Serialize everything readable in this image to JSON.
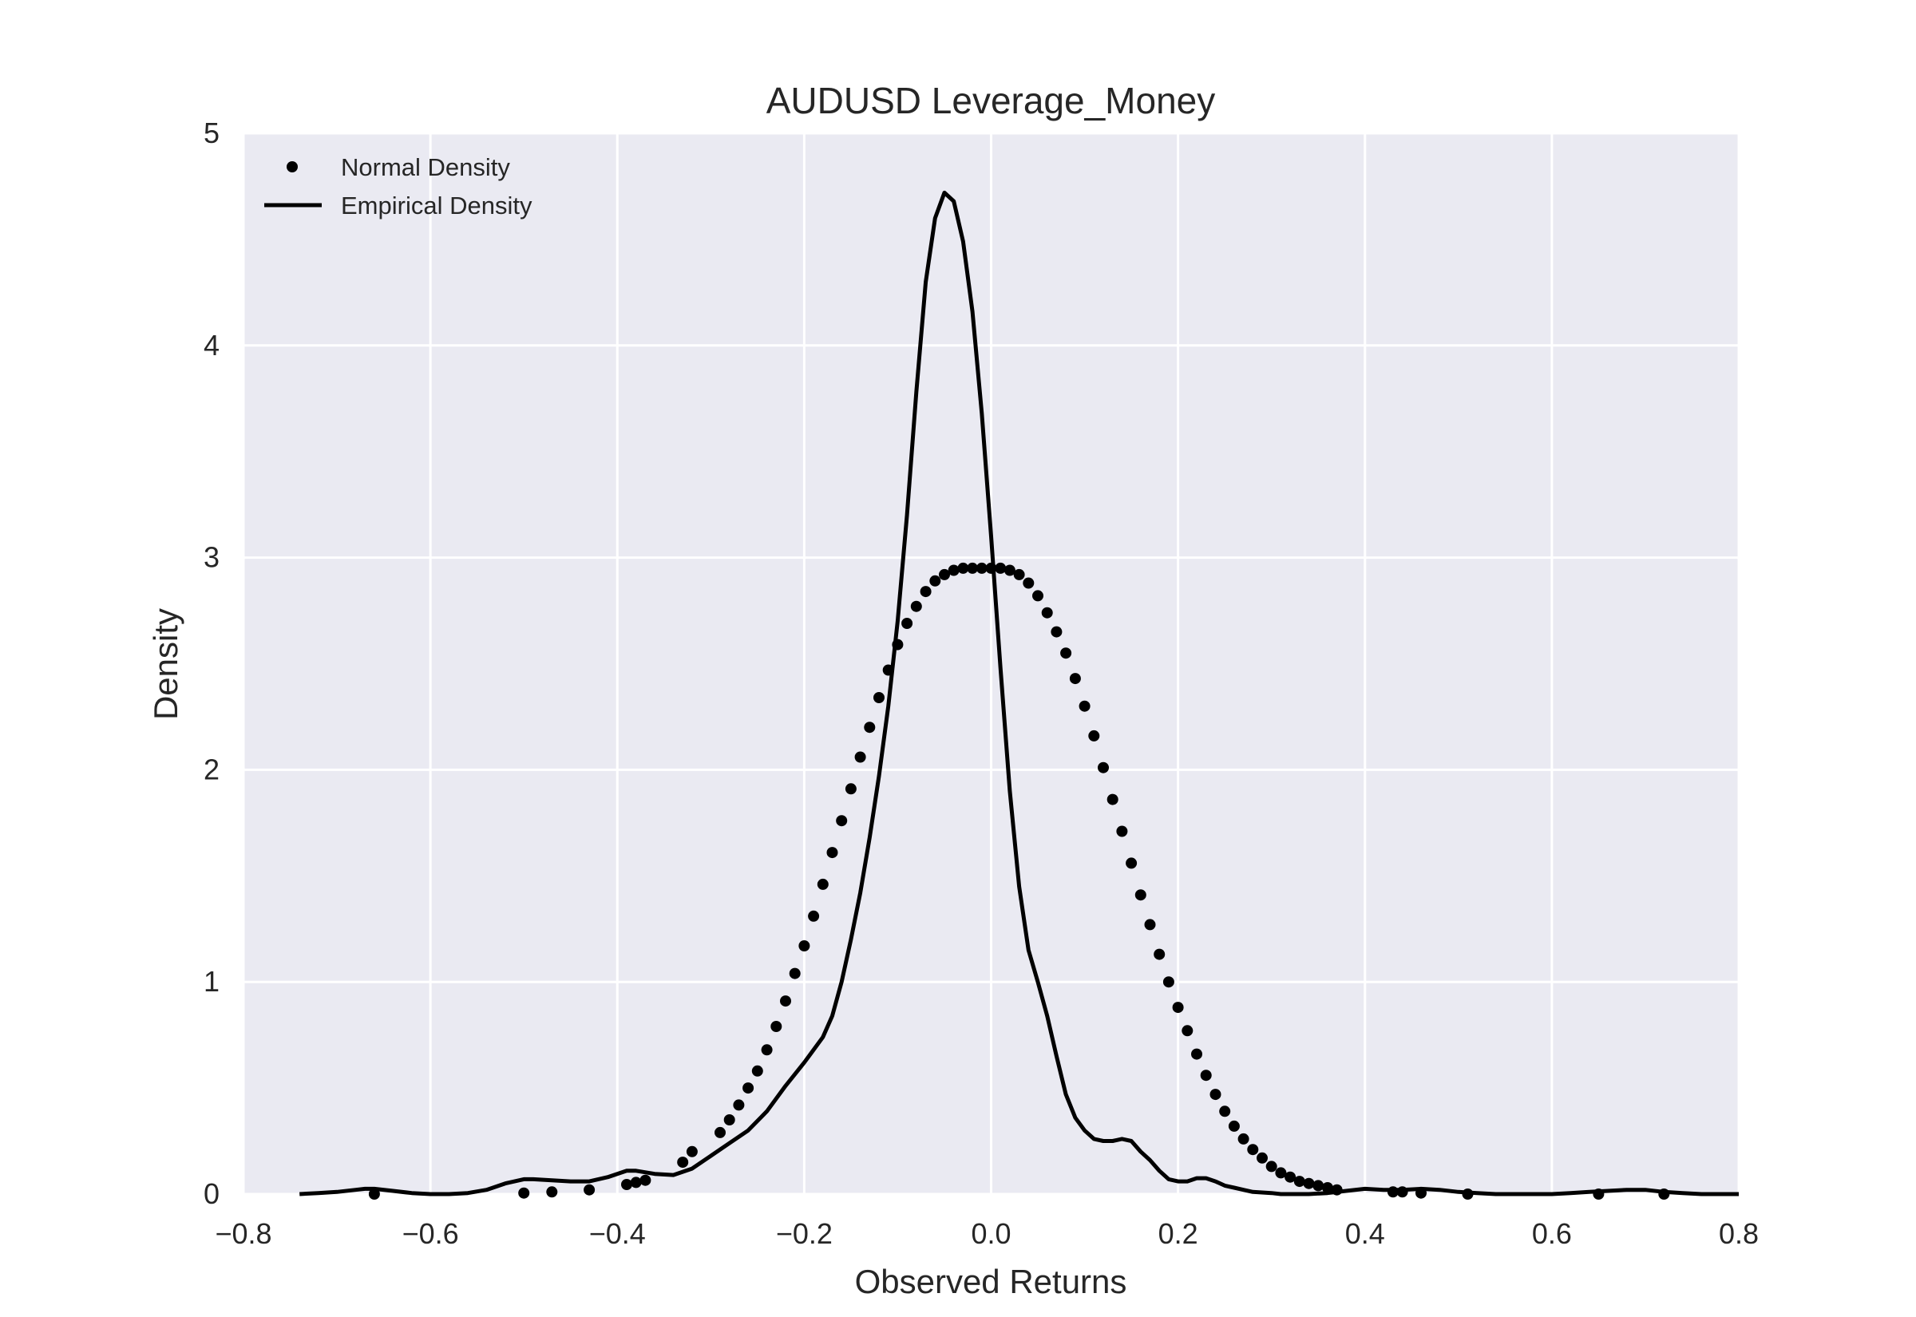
{
  "chart_data": {
    "type": "line",
    "title": "AUDUSD Leverage_Money",
    "xlabel": "Observed Returns",
    "ylabel": "Density",
    "xlim": [
      -0.8,
      0.8
    ],
    "ylim": [
      0,
      5
    ],
    "x_ticks": [
      -0.8,
      -0.6,
      -0.4,
      -0.2,
      0.0,
      0.2,
      0.4,
      0.6,
      0.8
    ],
    "x_tick_labels": [
      "−0.8",
      "−0.6",
      "−0.4",
      "−0.2",
      "0.0",
      "0.2",
      "0.4",
      "0.6",
      "0.8"
    ],
    "y_ticks": [
      0,
      1,
      2,
      3,
      4,
      5
    ],
    "y_tick_labels": [
      "0",
      "1",
      "2",
      "3",
      "4",
      "5"
    ],
    "grid": true,
    "legend_position": "top-left",
    "colors": {
      "background": "#eaeaf2",
      "grid": "#ffffff",
      "series": "#000000",
      "text": "#262626"
    },
    "series": [
      {
        "name": "Normal Density",
        "style": "markers",
        "x": [
          -0.66,
          -0.5,
          -0.47,
          -0.43,
          -0.39,
          -0.38,
          -0.37,
          -0.33,
          -0.32,
          -0.29,
          -0.28,
          -0.27,
          -0.26,
          -0.25,
          -0.24,
          -0.23,
          -0.22,
          -0.21,
          -0.2,
          -0.19,
          -0.18,
          -0.17,
          -0.16,
          -0.15,
          -0.14,
          -0.13,
          -0.12,
          -0.11,
          -0.1,
          -0.09,
          -0.08,
          -0.07,
          -0.06,
          -0.05,
          -0.04,
          -0.03,
          -0.02,
          -0.01,
          0.0,
          0.01,
          0.02,
          0.03,
          0.04,
          0.05,
          0.06,
          0.07,
          0.08,
          0.09,
          0.1,
          0.11,
          0.12,
          0.13,
          0.14,
          0.15,
          0.16,
          0.17,
          0.18,
          0.19,
          0.2,
          0.21,
          0.22,
          0.23,
          0.24,
          0.25,
          0.26,
          0.27,
          0.28,
          0.29,
          0.3,
          0.31,
          0.32,
          0.33,
          0.34,
          0.35,
          0.36,
          0.37,
          0.43,
          0.44,
          0.46,
          0.51,
          0.65,
          0.72
        ],
        "y": [
          0.0,
          0.005,
          0.01,
          0.02,
          0.045,
          0.055,
          0.065,
          0.15,
          0.2,
          0.29,
          0.35,
          0.42,
          0.5,
          0.58,
          0.68,
          0.79,
          0.91,
          1.04,
          1.17,
          1.31,
          1.46,
          1.61,
          1.76,
          1.91,
          2.06,
          2.2,
          2.34,
          2.47,
          2.59,
          2.69,
          2.77,
          2.84,
          2.89,
          2.92,
          2.94,
          2.95,
          2.95,
          2.95,
          2.95,
          2.95,
          2.94,
          2.92,
          2.88,
          2.82,
          2.74,
          2.65,
          2.55,
          2.43,
          2.3,
          2.16,
          2.01,
          1.86,
          1.71,
          1.56,
          1.41,
          1.27,
          1.13,
          1.0,
          0.88,
          0.77,
          0.66,
          0.56,
          0.47,
          0.39,
          0.32,
          0.26,
          0.21,
          0.17,
          0.13,
          0.1,
          0.08,
          0.06,
          0.05,
          0.04,
          0.03,
          0.02,
          0.01,
          0.01,
          0.005,
          0.0,
          0.0,
          0.0
        ]
      },
      {
        "name": "Empirical Density",
        "style": "line",
        "x": [
          -0.74,
          -0.72,
          -0.7,
          -0.68,
          -0.67,
          -0.66,
          -0.64,
          -0.62,
          -0.6,
          -0.58,
          -0.56,
          -0.54,
          -0.52,
          -0.5,
          -0.49,
          -0.47,
          -0.45,
          -0.43,
          -0.41,
          -0.39,
          -0.38,
          -0.36,
          -0.34,
          -0.32,
          -0.3,
          -0.28,
          -0.26,
          -0.24,
          -0.22,
          -0.2,
          -0.18,
          -0.17,
          -0.16,
          -0.15,
          -0.14,
          -0.13,
          -0.12,
          -0.11,
          -0.1,
          -0.09,
          -0.08,
          -0.07,
          -0.06,
          -0.05,
          -0.04,
          -0.03,
          -0.02,
          -0.01,
          0.0,
          0.01,
          0.02,
          0.03,
          0.04,
          0.05,
          0.06,
          0.07,
          0.08,
          0.09,
          0.1,
          0.11,
          0.12,
          0.13,
          0.14,
          0.15,
          0.16,
          0.17,
          0.18,
          0.19,
          0.2,
          0.21,
          0.22,
          0.23,
          0.24,
          0.25,
          0.26,
          0.27,
          0.28,
          0.3,
          0.31,
          0.32,
          0.34,
          0.36,
          0.38,
          0.4,
          0.42,
          0.44,
          0.46,
          0.48,
          0.5,
          0.52,
          0.54,
          0.56,
          0.58,
          0.6,
          0.62,
          0.64,
          0.66,
          0.68,
          0.7,
          0.72,
          0.74,
          0.76,
          0.78,
          0.8
        ],
        "y": [
          0.0,
          0.005,
          0.01,
          0.02,
          0.025,
          0.025,
          0.015,
          0.005,
          0.0,
          0.0,
          0.005,
          0.02,
          0.05,
          0.07,
          0.07,
          0.065,
          0.06,
          0.06,
          0.08,
          0.11,
          0.11,
          0.095,
          0.09,
          0.12,
          0.18,
          0.24,
          0.3,
          0.39,
          0.51,
          0.62,
          0.74,
          0.84,
          1.0,
          1.2,
          1.42,
          1.68,
          1.97,
          2.3,
          2.7,
          3.2,
          3.78,
          4.3,
          4.6,
          4.72,
          4.68,
          4.49,
          4.16,
          3.68,
          3.1,
          2.48,
          1.9,
          1.45,
          1.15,
          1.0,
          0.84,
          0.65,
          0.47,
          0.36,
          0.3,
          0.26,
          0.25,
          0.25,
          0.26,
          0.25,
          0.2,
          0.16,
          0.11,
          0.07,
          0.06,
          0.06,
          0.075,
          0.075,
          0.06,
          0.04,
          0.03,
          0.02,
          0.01,
          0.005,
          0.0,
          0.0,
          0.0,
          0.005,
          0.015,
          0.025,
          0.02,
          0.02,
          0.025,
          0.02,
          0.01,
          0.005,
          0.0,
          0.0,
          0.0,
          0.0,
          0.005,
          0.01,
          0.015,
          0.02,
          0.02,
          0.01,
          0.005,
          0.0,
          0.0,
          0.0
        ]
      }
    ]
  }
}
